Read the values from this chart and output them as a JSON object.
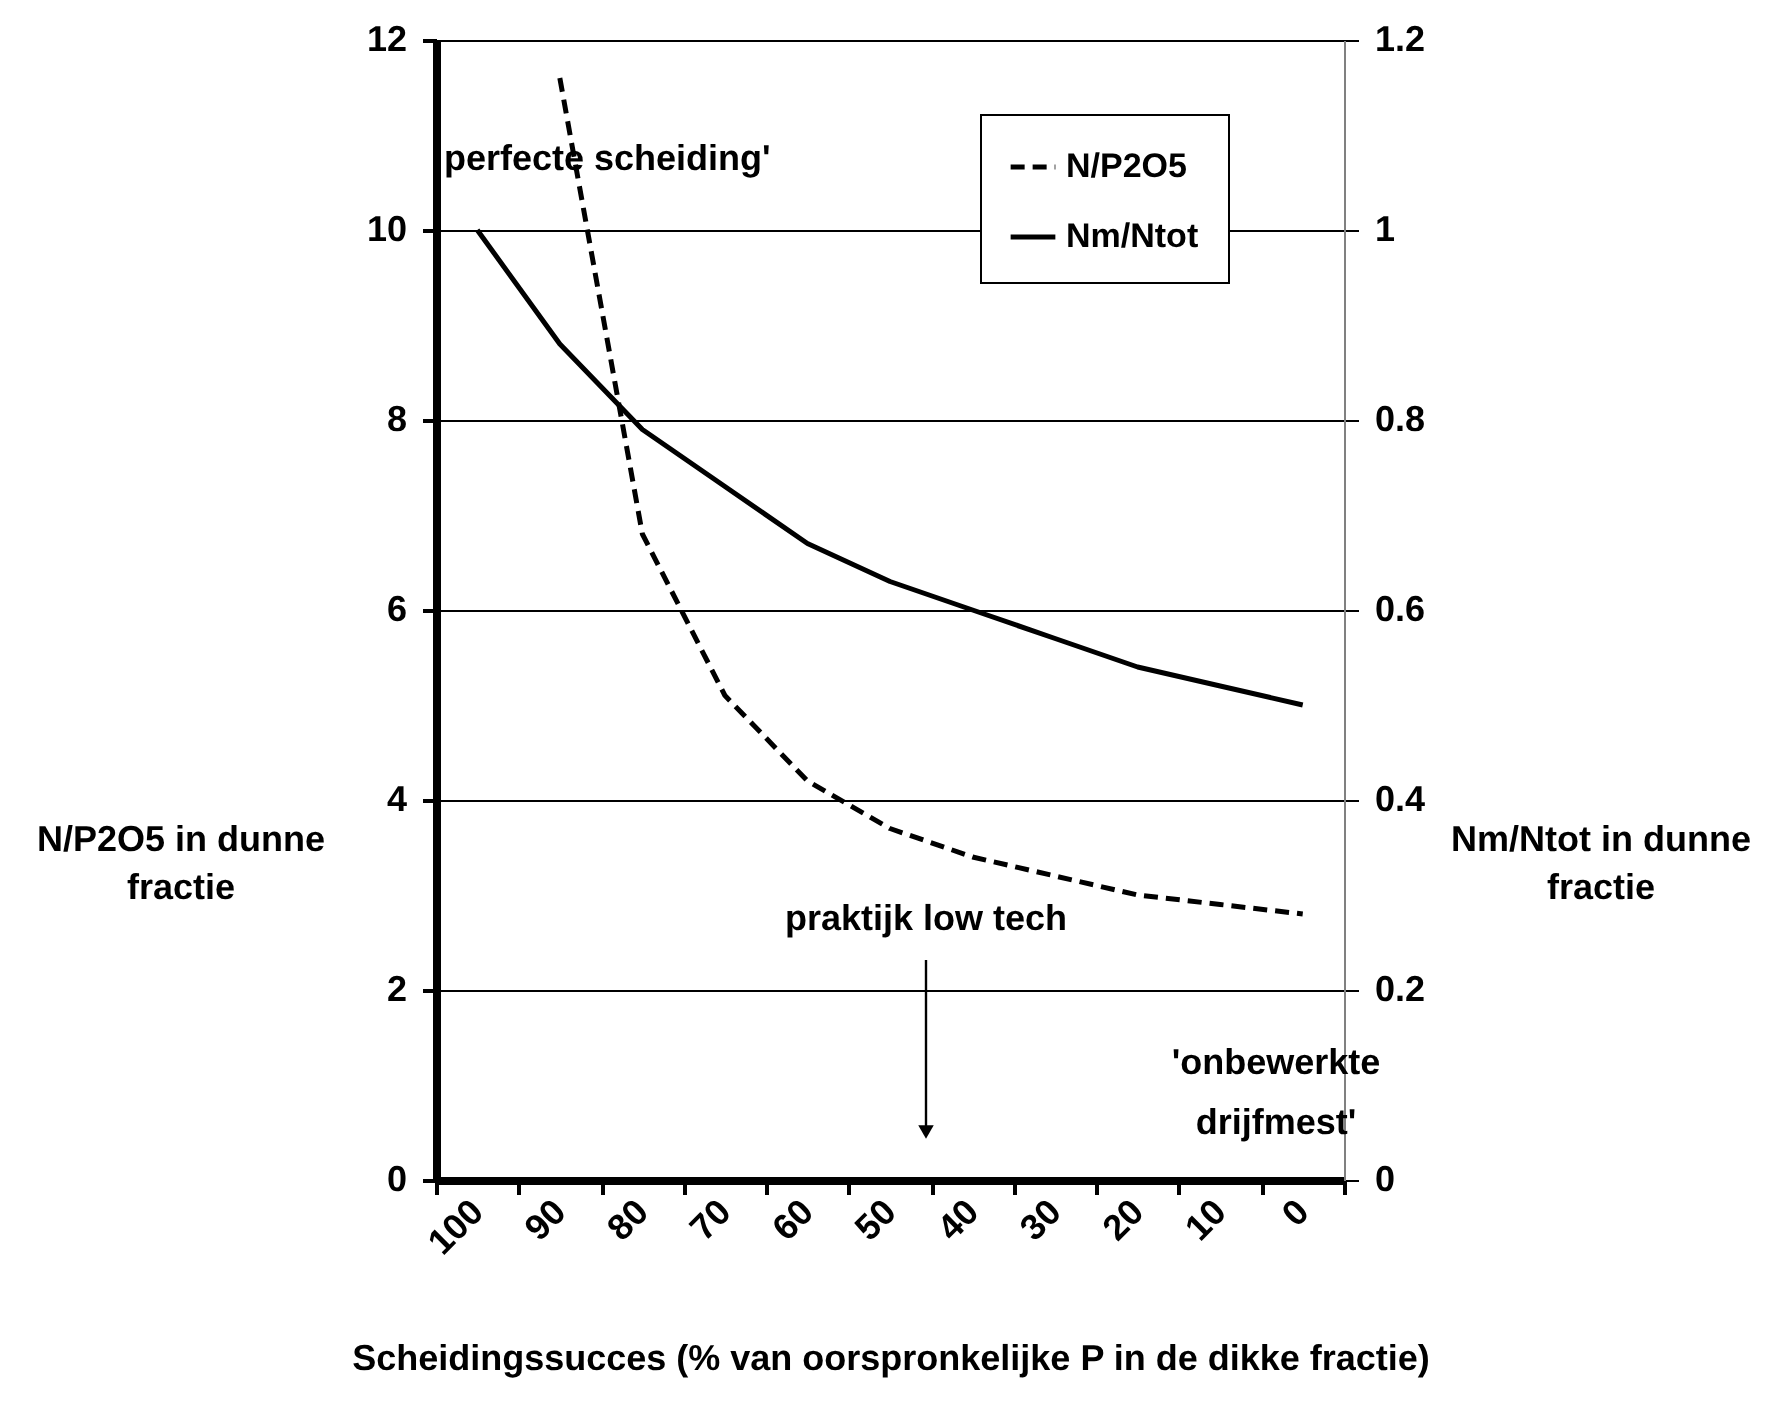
{
  "chart_data": {
    "type": "line",
    "xlabel": "Scheidingssucces (% van oorspronkelijke P in de dikke fractie)",
    "ylabel": "N/P2O5 in dunne fractie",
    "y2label": "Nm/Ntot in dunne fractie",
    "categories": [
      "100",
      "90",
      "80",
      "70",
      "60",
      "50",
      "40",
      "30",
      "20",
      "10",
      "0"
    ],
    "series": [
      {
        "name": "N/P2O5",
        "color": "#000000",
        "line_style": "dashed",
        "values": [
          null,
          11.6,
          6.8,
          5.1,
          4.2,
          3.7,
          3.4,
          3.2,
          3.0,
          2.9,
          2.8
        ]
      },
      {
        "name": "Nm/Ntot",
        "color": "#000000",
        "line_style": "solid",
        "axis": "y2",
        "values": [
          1.0,
          0.88,
          0.79,
          0.73,
          0.67,
          0.63,
          0.6,
          0.57,
          0.54,
          0.52,
          0.5
        ]
      }
    ],
    "ylim": [
      0,
      12
    ],
    "yticks": [
      0,
      2,
      4,
      6,
      8,
      10,
      12
    ],
    "y2lim": [
      0,
      1.2
    ],
    "y2ticks": [
      0,
      0.2,
      0.4,
      0.6,
      0.8,
      1,
      1.2
    ],
    "grid": "y",
    "legend": "top right",
    "annotations": [
      "perfecte scheiding'",
      "praktijk low tech",
      "'onbewerkte drijfmest'"
    ]
  }
}
